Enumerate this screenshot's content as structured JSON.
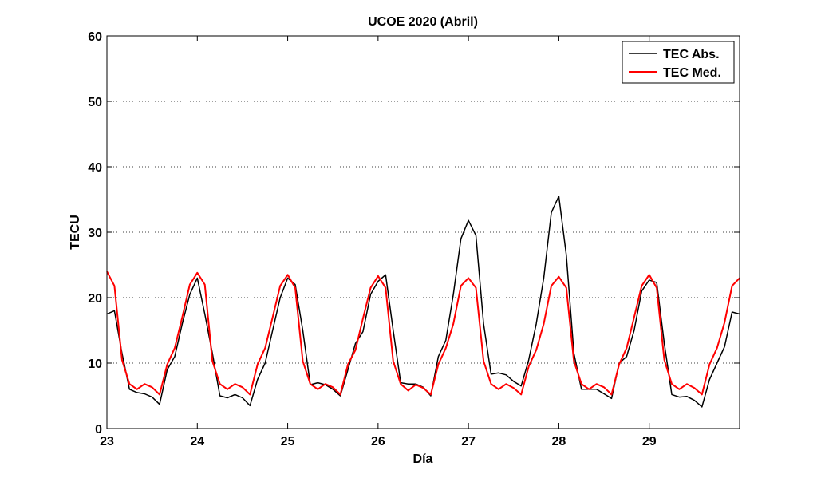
{
  "chart_data": {
    "type": "line",
    "title": "UCOE 2020 (Abril)",
    "xlabel": "Día",
    "ylabel": "TECU",
    "xlim": [
      23,
      30
    ],
    "ylim": [
      0,
      60
    ],
    "xticks": [
      23,
      24,
      25,
      26,
      27,
      28,
      29
    ],
    "yticks": [
      0,
      10,
      20,
      30,
      40,
      50,
      60
    ],
    "grid": "horizontal dotted",
    "legend_position": "top-right",
    "colors": {
      "TEC Abs.": "#000000",
      "TEC Med.": "#ff0000"
    },
    "x": [
      23.0,
      23.083,
      23.167,
      23.25,
      23.333,
      23.417,
      23.5,
      23.583,
      23.667,
      23.75,
      23.833,
      23.917,
      24.0,
      24.083,
      24.167,
      24.25,
      24.333,
      24.417,
      24.5,
      24.583,
      24.667,
      24.75,
      24.833,
      24.917,
      25.0,
      25.083,
      25.167,
      25.25,
      25.333,
      25.417,
      25.5,
      25.583,
      25.667,
      25.75,
      25.833,
      25.917,
      26.0,
      26.083,
      26.167,
      26.25,
      26.333,
      26.417,
      26.5,
      26.583,
      26.667,
      26.75,
      26.833,
      26.917,
      27.0,
      27.083,
      27.167,
      27.25,
      27.333,
      27.417,
      27.5,
      27.583,
      27.667,
      27.75,
      27.833,
      27.917,
      28.0,
      28.083,
      28.167,
      28.25,
      28.333,
      28.417,
      28.5,
      28.583,
      28.667,
      28.75,
      28.833,
      28.917,
      29.0,
      29.083,
      29.167,
      29.25,
      29.333,
      29.417,
      29.5,
      29.583,
      29.667,
      29.75,
      29.833,
      29.917,
      30.0
    ],
    "series": [
      {
        "name": "TEC Abs.",
        "values": [
          17.5,
          18.0,
          11.5,
          6.0,
          5.5,
          5.3,
          4.8,
          3.7,
          9.0,
          11.0,
          16.0,
          20.5,
          23.0,
          17.5,
          11.5,
          5.0,
          4.7,
          5.2,
          4.7,
          3.5,
          7.5,
          10.0,
          15.0,
          20.0,
          23.0,
          22.0,
          15.0,
          6.7,
          7.0,
          6.7,
          6.0,
          5.0,
          9.0,
          13.0,
          14.8,
          20.5,
          22.5,
          23.5,
          15.0,
          7.0,
          6.8,
          6.8,
          6.3,
          5.0,
          11.0,
          13.5,
          20.5,
          29.0,
          31.8,
          29.5,
          16.0,
          8.3,
          8.5,
          8.2,
          7.2,
          6.5,
          10.5,
          16.0,
          23.0,
          33.0,
          35.5,
          26.5,
          11.5,
          6.0,
          6.0,
          6.0,
          5.3,
          4.6,
          10.0,
          11.0,
          15.0,
          21.0,
          22.7,
          22.3,
          13.0,
          5.2,
          4.8,
          4.9,
          4.3,
          3.3,
          7.5,
          10.0,
          12.5,
          17.8,
          17.5
        ]
      },
      {
        "name": "TEC Med.",
        "values": [
          24.0,
          21.8,
          10.5,
          6.8,
          6.0,
          6.8,
          6.3,
          5.2,
          9.8,
          12.3,
          17.0,
          22.0,
          23.8,
          22.0,
          10.3,
          6.8,
          6.0,
          6.8,
          6.3,
          5.2,
          9.8,
          12.3,
          17.0,
          21.8,
          23.5,
          21.5,
          10.3,
          6.8,
          6.0,
          6.8,
          6.3,
          5.2,
          9.8,
          12.0,
          16.8,
          21.5,
          23.3,
          21.5,
          10.3,
          6.8,
          5.8,
          6.7,
          6.2,
          5.2,
          9.8,
          12.3,
          16.0,
          21.8,
          23.0,
          21.5,
          10.3,
          6.8,
          6.0,
          6.8,
          6.2,
          5.2,
          9.5,
          12.0,
          16.0,
          21.8,
          23.2,
          21.5,
          10.3,
          6.8,
          6.0,
          6.8,
          6.3,
          5.2,
          9.8,
          12.3,
          17.0,
          21.8,
          23.5,
          21.5,
          10.5,
          6.8,
          6.0,
          6.8,
          6.2,
          5.2,
          9.8,
          12.3,
          16.2,
          21.8,
          23.0
        ]
      }
    ]
  }
}
